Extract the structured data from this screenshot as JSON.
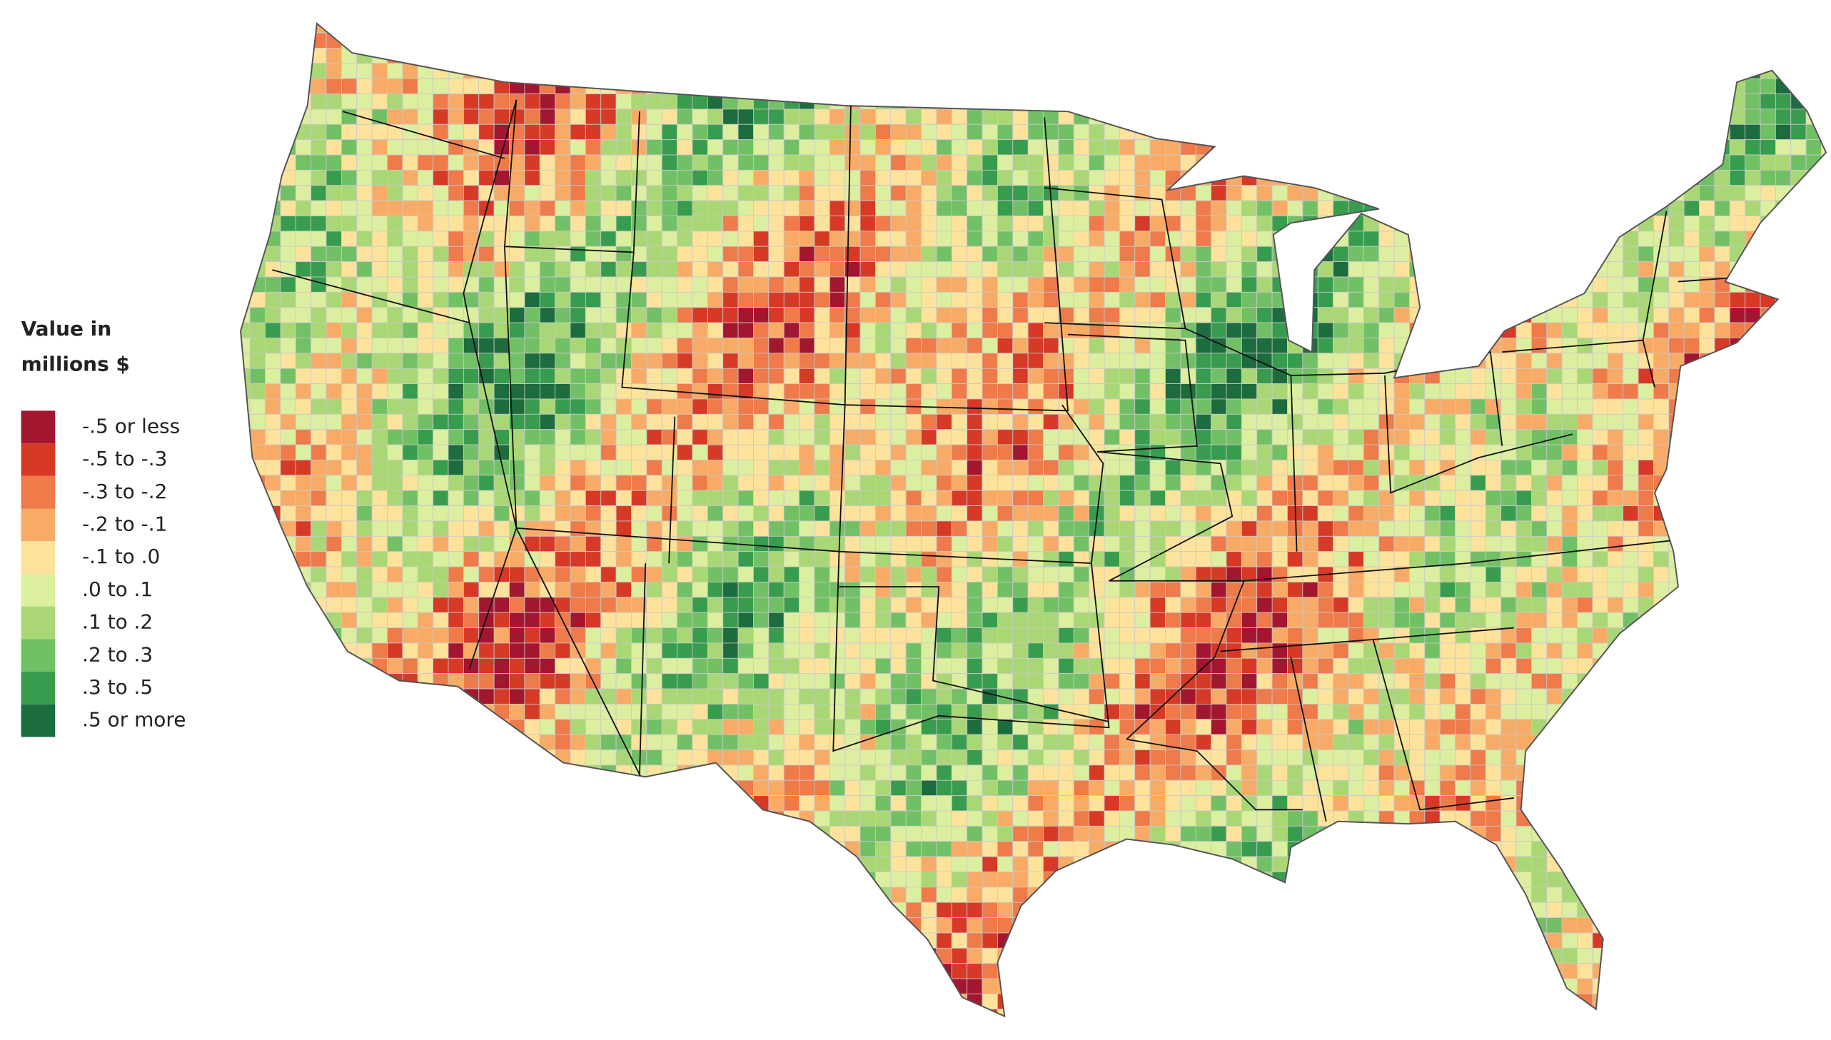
{
  "legend": {
    "title_lines": [
      "Value in",
      "millions $"
    ],
    "items": [
      {
        "label": "-.5 or less",
        "color": "#a3162f"
      },
      {
        "label": "-.5 to -.3",
        "color": "#d63a27"
      },
      {
        "label": "-.3 to -.2",
        "color": "#ef7a4a"
      },
      {
        "label": "-.2 to -.1",
        "color": "#f8ab66"
      },
      {
        "label": "-.1 to .0",
        "color": "#fde29b"
      },
      {
        "label": ".0 to .1",
        "color": "#dcee9f"
      },
      {
        "label": ".1 to .2",
        "color": "#aad775"
      },
      {
        "label": ".2 to .3",
        "color": "#72c066"
      },
      {
        "label": ".3 to .5",
        "color": "#389c4f"
      },
      {
        "label": ".5 or more",
        "color": "#1c6c3e"
      }
    ]
  }
}
